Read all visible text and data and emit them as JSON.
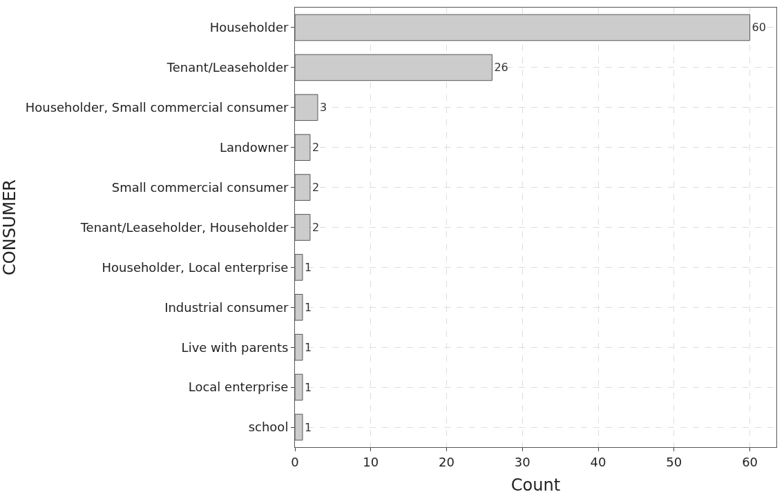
{
  "chart_data": {
    "type": "bar",
    "orientation": "horizontal",
    "xlabel": "Count",
    "ylabel": "CONSUMER",
    "categories": [
      "Householder",
      "Tenant/Leaseholder",
      "Householder, Small commercial consumer",
      "Landowner",
      "Small commercial consumer",
      "Tenant/Leaseholder, Householder",
      "Householder, Local enterprise",
      "Industrial consumer",
      "Live with parents",
      "Local enterprise",
      "school"
    ],
    "values": [
      60,
      26,
      3,
      2,
      2,
      2,
      1,
      1,
      1,
      1,
      1
    ],
    "color": "#cccccc",
    "data_labels": true,
    "grid": true,
    "legend": false,
    "xlim": [
      0,
      63.5
    ],
    "xticks": [
      0,
      10,
      20,
      30,
      40,
      50,
      60
    ]
  }
}
